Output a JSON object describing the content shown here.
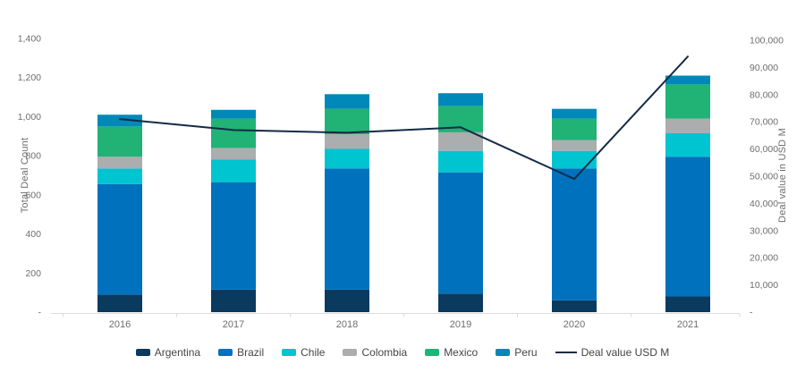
{
  "axes": {
    "left": {
      "title": "Total Deal Count",
      "ticks": [
        "-",
        "200",
        "400",
        "600",
        "800",
        "1,000",
        "1,200",
        "1,400"
      ],
      "max": 1400
    },
    "right": {
      "title": "Deal value in USD M",
      "ticks": [
        "-",
        "10,000",
        "20,000",
        "30,000",
        "40,000",
        "50,000",
        "60,000",
        "70,000",
        "80,000",
        "90,000",
        "100,000"
      ],
      "max": 100000
    }
  },
  "legend": {
    "items": [
      {
        "label": "Argentina",
        "color": "#0a3a5e",
        "type": "swatch"
      },
      {
        "label": "Brazil",
        "color": "#0071bc",
        "type": "swatch"
      },
      {
        "label": "Chile",
        "color": "#00c4d0",
        "type": "swatch"
      },
      {
        "label": "Colombia",
        "color": "#abadaf",
        "type": "swatch"
      },
      {
        "label": "Mexico",
        "color": "#21b276",
        "type": "swatch"
      },
      {
        "label": "Peru",
        "color": "#0089b8",
        "type": "swatch"
      },
      {
        "label": "Deal value USD M",
        "color": "#132b47",
        "type": "line"
      }
    ]
  },
  "chart_data": {
    "type": "bar",
    "subtype": "stacked-bars-with-line-overlay",
    "title": "",
    "categories": [
      "2016",
      "2017",
      "2018",
      "2019",
      "2020",
      "2021"
    ],
    "series": [
      {
        "name": "Argentina",
        "type": "bar",
        "axis": "left",
        "color": "#0a3a5e",
        "values": [
          90,
          115,
          115,
          95,
          60,
          80
        ]
      },
      {
        "name": "Brazil",
        "type": "bar",
        "axis": "left",
        "color": "#0071bc",
        "values": [
          565,
          550,
          620,
          620,
          675,
          715
        ]
      },
      {
        "name": "Chile",
        "type": "bar",
        "axis": "left",
        "color": "#00c4d0",
        "values": [
          80,
          115,
          100,
          110,
          90,
          120
        ]
      },
      {
        "name": "Colombia",
        "type": "bar",
        "axis": "left",
        "color": "#abadaf",
        "values": [
          60,
          60,
          75,
          95,
          55,
          75
        ]
      },
      {
        "name": "Mexico",
        "type": "bar",
        "axis": "left",
        "color": "#21b276",
        "values": [
          155,
          150,
          130,
          135,
          110,
          175
        ]
      },
      {
        "name": "Peru",
        "type": "bar",
        "axis": "left",
        "color": "#0089b8",
        "values": [
          60,
          45,
          75,
          65,
          50,
          45
        ]
      },
      {
        "name": "Deal value USD M",
        "type": "line",
        "axis": "right",
        "color": "#132b47",
        "values": [
          71000,
          67000,
          66000,
          68000,
          49000,
          94000
        ]
      }
    ],
    "ylabel_left": "Total Deal Count",
    "ylabel_right": "Deal value in USD M",
    "ylim_left": [
      0,
      1400
    ],
    "ylim_right": [
      0,
      100000
    ],
    "grid": false,
    "legend_position": "bottom"
  }
}
